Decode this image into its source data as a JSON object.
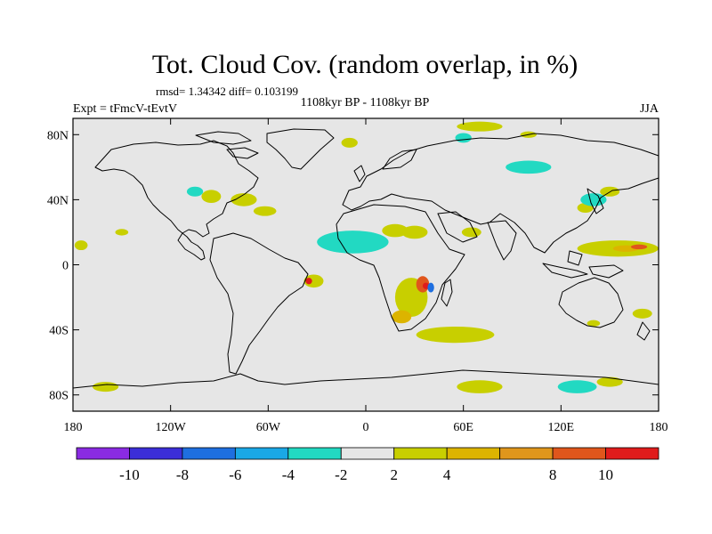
{
  "title": "Tot. Cloud Cov. (random overlap, in %)",
  "stats": "rmsd= 1.34342 diff= 0.103199",
  "experiment": "Expt = tFmcV-tEvtV",
  "period": "1108kyr BP - 1108kyr BP",
  "season": "JJA",
  "chart_data": {
    "type": "map",
    "projection": "cylindrical-equidistant",
    "lon_range": [
      -180,
      180
    ],
    "lat_range": [
      -90,
      90
    ],
    "x_ticks": [
      {
        "lon": -180,
        "label": "180"
      },
      {
        "lon": -120,
        "label": "120W"
      },
      {
        "lon": -60,
        "label": "60W"
      },
      {
        "lon": 0,
        "label": "0"
      },
      {
        "lon": 60,
        "label": "60E"
      },
      {
        "lon": 120,
        "label": "120E"
      },
      {
        "lon": 180,
        "label": "180"
      }
    ],
    "y_ticks": [
      {
        "lat": 80,
        "label": "80N"
      },
      {
        "lat": 40,
        "label": "40N"
      },
      {
        "lat": 0,
        "label": "0"
      },
      {
        "lat": -40,
        "label": "40S"
      },
      {
        "lat": -80,
        "label": "80S"
      }
    ],
    "colorbar": {
      "levels": [
        -12,
        -10,
        -8,
        -6,
        -4,
        -2,
        2,
        4,
        6,
        8,
        10,
        12
      ],
      "colors": [
        "#8a2be2",
        "#3b2ed8",
        "#1e6fe0",
        "#1aa8e6",
        "#22d9c2",
        "#e6e6e6",
        "#c8cf00",
        "#dcb400",
        "#e0961c",
        "#e0561c",
        "#e01c1c"
      ],
      "labels": [
        {
          "value": -10,
          "label": "-10"
        },
        {
          "value": -8,
          "label": "-8"
        },
        {
          "value": -6,
          "label": "-6"
        },
        {
          "value": -4,
          "label": "-4"
        },
        {
          "value": -2,
          "label": "-2"
        },
        {
          "value": 2,
          "label": "2"
        },
        {
          "value": 4,
          "label": "4"
        },
        {
          "value": 8,
          "label": "8"
        },
        {
          "value": 10,
          "label": "10"
        }
      ]
    },
    "anomalies": [
      {
        "lon": -10,
        "lat": 13,
        "rlon": 14,
        "rlat": 5,
        "value": -6
      },
      {
        "lon": -8,
        "lat": 14,
        "rlon": 22,
        "rlat": 7,
        "value": -3
      },
      {
        "lon": 18,
        "lat": 21,
        "rlon": 8,
        "rlat": 4,
        "value": 3
      },
      {
        "lon": 30,
        "lat": 20,
        "rlon": 8,
        "rlat": 4,
        "value": 3
      },
      {
        "lon": 28,
        "lat": -20,
        "rlon": 10,
        "rlat": 12,
        "value": 3
      },
      {
        "lon": 22,
        "lat": -32,
        "rlon": 6,
        "rlat": 4,
        "value": 5
      },
      {
        "lon": 35,
        "lat": -12,
        "rlon": 4,
        "rlat": 5,
        "value": 9
      },
      {
        "lon": 37,
        "lat": -13,
        "rlon": 2,
        "rlat": 2,
        "value": 11
      },
      {
        "lon": 40,
        "lat": -14,
        "rlon": 2,
        "rlat": 3,
        "value": -7
      },
      {
        "lon": 55,
        "lat": -43,
        "rlon": 24,
        "rlat": 5,
        "value": 3
      },
      {
        "lon": 155,
        "lat": 10,
        "rlon": 25,
        "rlat": 5,
        "value": 3
      },
      {
        "lon": 160,
        "lat": 10,
        "rlon": 8,
        "rlat": 2,
        "value": 5
      },
      {
        "lon": 168,
        "lat": 11,
        "rlon": 5,
        "rlat": 1.5,
        "value": 9
      },
      {
        "lon": 65,
        "lat": 20,
        "rlon": 6,
        "rlat": 3,
        "value": 3
      },
      {
        "lon": -32,
        "lat": -10,
        "rlon": 6,
        "rlat": 4,
        "value": 3
      },
      {
        "lon": -35,
        "lat": -10,
        "rlon": 2,
        "rlat": 2,
        "value": 10
      },
      {
        "lon": -95,
        "lat": 42,
        "rlon": 6,
        "rlat": 4,
        "value": 3
      },
      {
        "lon": -75,
        "lat": 40,
        "rlon": 8,
        "rlat": 4,
        "value": 3
      },
      {
        "lon": -62,
        "lat": 33,
        "rlon": 7,
        "rlat": 3,
        "value": 3
      },
      {
        "lon": -105,
        "lat": 45,
        "rlon": 5,
        "rlat": 3,
        "value": -3
      },
      {
        "lon": -150,
        "lat": 20,
        "rlon": 4,
        "rlat": 2,
        "value": 3
      },
      {
        "lon": -175,
        "lat": 12,
        "rlon": 4,
        "rlat": 3,
        "value": 3
      },
      {
        "lon": 135,
        "lat": 35,
        "rlon": 5,
        "rlat": 3,
        "value": 3
      },
      {
        "lon": 140,
        "lat": 40,
        "rlon": 8,
        "rlat": 4,
        "value": -3
      },
      {
        "lon": 150,
        "lat": 45,
        "rlon": 6,
        "rlat": 3,
        "value": 3
      },
      {
        "lon": 100,
        "lat": 60,
        "rlon": 14,
        "rlat": 4,
        "value": -3
      },
      {
        "lon": 70,
        "lat": 85,
        "rlon": 14,
        "rlat": 3,
        "value": 3
      },
      {
        "lon": 60,
        "lat": 78,
        "rlon": 5,
        "rlat": 3,
        "value": -3
      },
      {
        "lon": -10,
        "lat": 75,
        "rlon": 5,
        "rlat": 3,
        "value": 3
      },
      {
        "lon": 100,
        "lat": 80,
        "rlon": 5,
        "rlat": 2,
        "value": 3
      },
      {
        "lon": 170,
        "lat": -30,
        "rlon": 6,
        "rlat": 3,
        "value": 3
      },
      {
        "lon": 140,
        "lat": -36,
        "rlon": 4,
        "rlat": 2,
        "value": 3
      },
      {
        "lon": 70,
        "lat": -75,
        "rlon": 14,
        "rlat": 4,
        "value": 3
      },
      {
        "lon": 130,
        "lat": -75,
        "rlon": 12,
        "rlat": 4,
        "value": -3
      },
      {
        "lon": 150,
        "lat": -72,
        "rlon": 8,
        "rlat": 3,
        "value": 3
      },
      {
        "lon": -160,
        "lat": -75,
        "rlon": 8,
        "rlat": 3,
        "value": 3
      }
    ]
  }
}
